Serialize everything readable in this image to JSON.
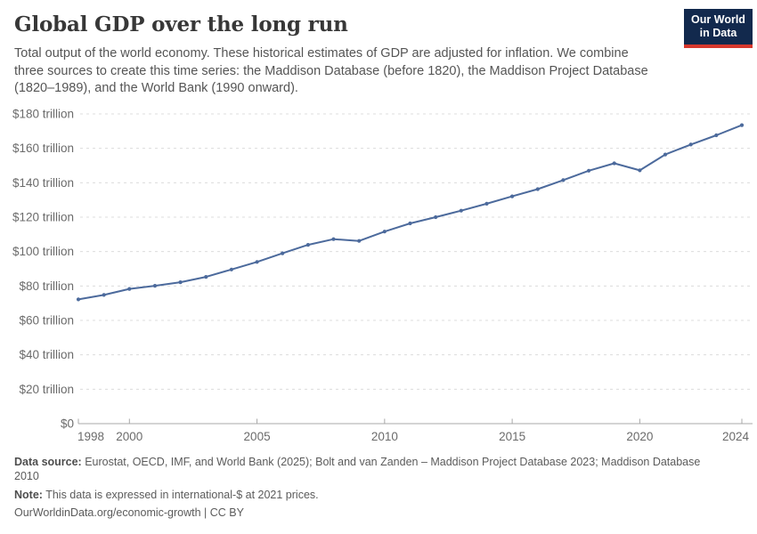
{
  "header": {
    "title": "Global GDP over the long run",
    "subtitle": "Total output of the world economy. These historical estimates of GDP are adjusted for inflation. We combine\nthree sources to create this time series: the Maddison Database (before 1820), the Maddison Project Database\n(1820–1989), and the World Bank (1990 onward).",
    "logo": {
      "line1": "Our World",
      "line2": "in Data",
      "bg_color": "#12294d",
      "accent_color": "#d7382d"
    }
  },
  "chart_data": {
    "type": "line",
    "title": "Global GDP over the long run",
    "series_name": "World GDP",
    "unit": "trillion international-$ at 2021 prices",
    "x": [
      1998,
      1999,
      2000,
      2001,
      2002,
      2003,
      2004,
      2005,
      2006,
      2007,
      2008,
      2009,
      2010,
      2011,
      2012,
      2013,
      2014,
      2015,
      2016,
      2017,
      2018,
      2019,
      2020,
      2021,
      2022,
      2023,
      2024
    ],
    "values": [
      72.2,
      74.8,
      78.3,
      80.1,
      82.2,
      85.3,
      89.6,
      94.0,
      99.0,
      103.9,
      107.2,
      106.2,
      111.6,
      116.4,
      120.0,
      123.8,
      127.8,
      132.1,
      136.3,
      141.5,
      147.0,
      151.3,
      147.2,
      156.4,
      162.2,
      167.6,
      173.5
    ],
    "xlabel": "",
    "ylabel": "",
    "ylim": [
      0,
      180
    ],
    "xlim": [
      1998,
      2024
    ],
    "grid": true,
    "legend_position": "none",
    "line_color": "#4C6A9C",
    "grid_color": "#dcdcdc",
    "axis_color": "#a8a8a8",
    "tick_label_color": "#6b6b6b",
    "yticks": [
      {
        "value": 0,
        "label": "$0"
      },
      {
        "value": 20,
        "label": "$20 trillion"
      },
      {
        "value": 40,
        "label": "$40 trillion"
      },
      {
        "value": 60,
        "label": "$60 trillion"
      },
      {
        "value": 80,
        "label": "$80 trillion"
      },
      {
        "value": 100,
        "label": "$100 trillion"
      },
      {
        "value": 120,
        "label": "$120 trillion"
      },
      {
        "value": 140,
        "label": "$140 trillion"
      },
      {
        "value": 160,
        "label": "$160 trillion"
      },
      {
        "value": 180,
        "label": "$180 trillion"
      }
    ],
    "xticks": [
      {
        "value": 1998,
        "label": "1998"
      },
      {
        "value": 2000,
        "label": "2000"
      },
      {
        "value": 2005,
        "label": "2005"
      },
      {
        "value": 2010,
        "label": "2010"
      },
      {
        "value": 2015,
        "label": "2015"
      },
      {
        "value": 2020,
        "label": "2020"
      },
      {
        "value": 2024,
        "label": "2024"
      }
    ]
  },
  "footer": {
    "data_source_label": "Data source:",
    "data_source_text": " Eurostat, OECD, IMF, and World Bank (2025); Bolt and van Zanden – Maddison Project Database 2023; Maddison Database\n2010",
    "note_label": "Note:",
    "note_text": " This data is expressed in international-$ at 2021 prices.",
    "link_text": "OurWorldinData.org/economic-growth | CC BY"
  }
}
